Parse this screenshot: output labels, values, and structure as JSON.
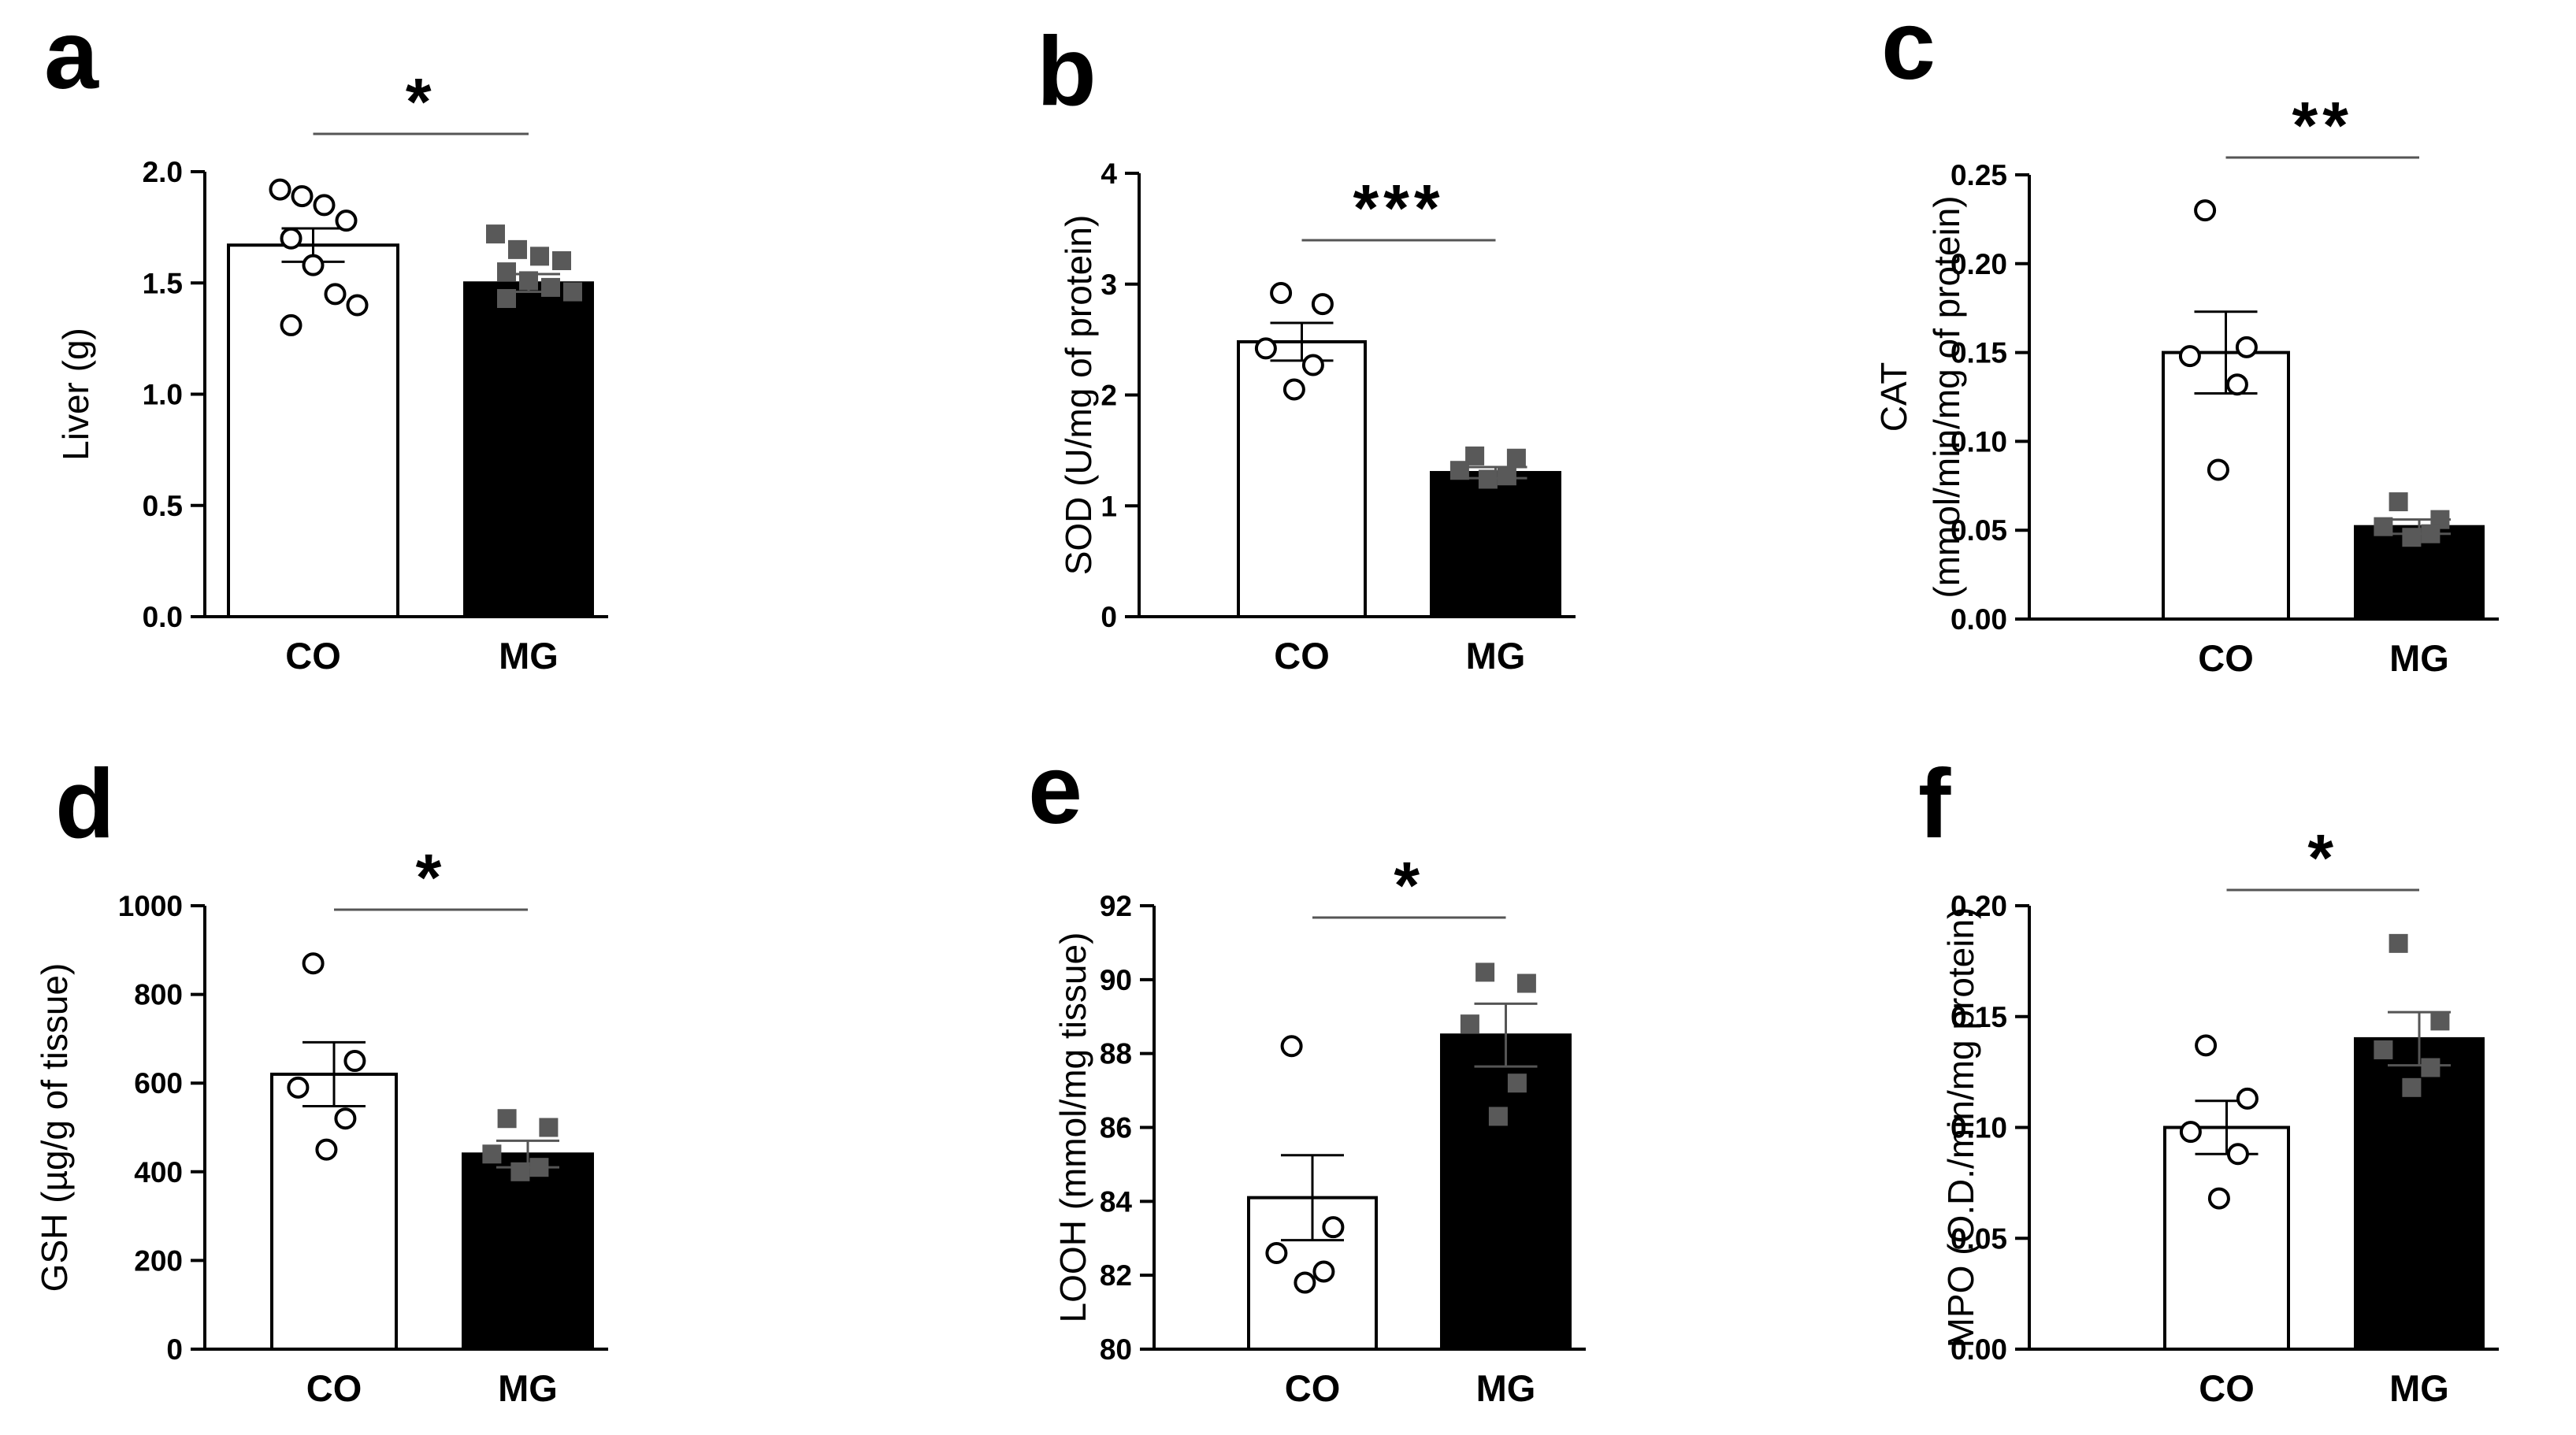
{
  "figure": {
    "colors": {
      "co_bar": "#ffffff",
      "mg_bar": "#000000",
      "co_point": "#ffffff",
      "mg_point": "#595959",
      "axis": "#000000",
      "sig_line": "#555555"
    }
  },
  "chart_data": [
    {
      "panel": "a",
      "type": "bar",
      "categories": [
        "CO",
        "MG"
      ],
      "values": [
        1.67,
        1.5
      ],
      "sem": [
        0.075,
        0.04
      ],
      "points": [
        [
          1.92,
          1.89,
          1.85,
          1.78,
          1.7,
          1.58,
          1.45,
          1.4,
          1.31
        ],
        [
          1.72,
          1.65,
          1.62,
          1.6,
          1.55,
          1.51,
          1.48,
          1.46,
          1.43
        ]
      ],
      "ylabel": "Liver (g)",
      "ylim": [
        0,
        2.0
      ],
      "yticks": [
        "0.0",
        "0.5",
        "1.0",
        "1.5",
        "2.0"
      ],
      "significance": "*"
    },
    {
      "panel": "b",
      "type": "bar",
      "categories": [
        "CO",
        "MG"
      ],
      "values": [
        2.48,
        1.3
      ],
      "sem": [
        0.17,
        0.05
      ],
      "points": [
        [
          2.92,
          2.82,
          2.42,
          2.27,
          2.05
        ],
        [
          1.45,
          1.43,
          1.32,
          1.27,
          1.24
        ]
      ],
      "ylabel": "SOD (U/mg of protein)",
      "ylim": [
        0,
        4
      ],
      "yticks": [
        "0",
        "1",
        "2",
        "3",
        "4"
      ],
      "significance": "***"
    },
    {
      "panel": "c",
      "type": "bar",
      "categories": [
        "CO",
        "MG"
      ],
      "values": [
        0.15,
        0.052
      ],
      "sem": [
        0.023,
        0.004
      ],
      "points": [
        [
          0.23,
          0.153,
          0.148,
          0.132,
          0.084
        ],
        [
          0.066,
          0.056,
          0.052,
          0.048,
          0.046
        ]
      ],
      "ylabel": "CAT",
      "ylabel2": "(mmol/min/mg of protein)",
      "ylim": [
        0,
        0.25
      ],
      "yticks": [
        "0.00",
        "0.05",
        "0.10",
        "0.15",
        "0.20",
        "0.25"
      ],
      "significance": "**"
    },
    {
      "panel": "d",
      "type": "bar",
      "categories": [
        "CO",
        "MG"
      ],
      "values": [
        620,
        440
      ],
      "sem": [
        72,
        30
      ],
      "points": [
        [
          870,
          650,
          590,
          520,
          450
        ],
        [
          520,
          500,
          440,
          410,
          400
        ]
      ],
      "ylabel": "GSH (µg/g of tissue)",
      "ylim": [
        0,
        1000
      ],
      "yticks": [
        "0",
        "200",
        "400",
        "600",
        "800",
        "1000"
      ],
      "significance": "*"
    },
    {
      "panel": "e",
      "type": "bar",
      "categories": [
        "CO",
        "MG"
      ],
      "values": [
        84.1,
        88.5
      ],
      "sem": [
        1.15,
        0.85
      ],
      "points": [
        [
          88.2,
          83.3,
          82.6,
          82.1,
          81.8
        ],
        [
          90.2,
          89.9,
          88.8,
          87.2,
          86.3
        ]
      ],
      "ylabel": "LOOH (mmol/mg tissue)",
      "ylim": [
        80,
        92
      ],
      "yticks": [
        "80",
        "82",
        "84",
        "86",
        "88",
        "90",
        "92"
      ],
      "significance": "*"
    },
    {
      "panel": "f",
      "type": "bar",
      "categories": [
        "CO",
        "MG"
      ],
      "values": [
        0.1,
        0.14
      ],
      "sem": [
        0.012,
        0.012
      ],
      "points": [
        [
          0.137,
          0.113,
          0.098,
          0.088,
          0.068
        ],
        [
          0.183,
          0.148,
          0.135,
          0.127,
          0.118
        ]
      ],
      "ylabel": "MPO (O.D./min/mg protein)",
      "ylim": [
        0,
        0.2
      ],
      "yticks": [
        "0.00",
        "0.05",
        "0.10",
        "0.15",
        "0.20"
      ],
      "significance": "*"
    }
  ]
}
